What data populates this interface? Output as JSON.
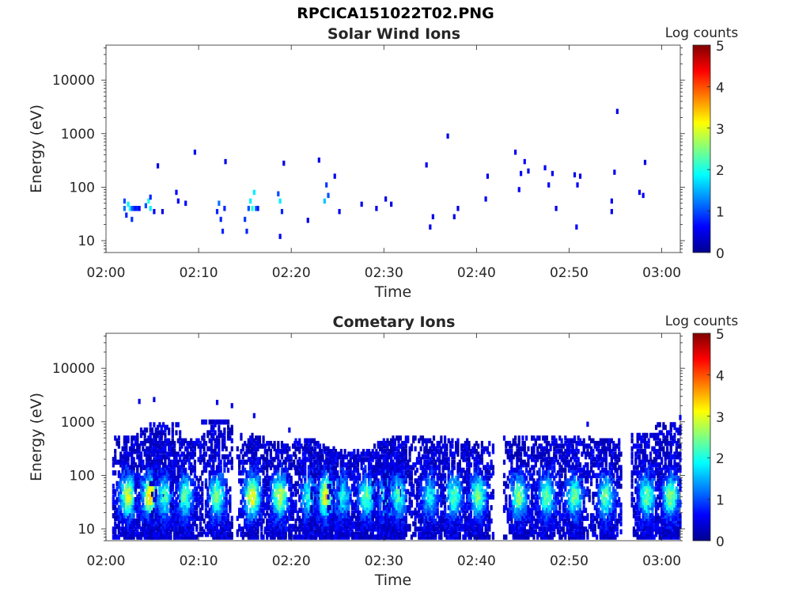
{
  "figure_title": "RPCICA151022T02.PNG",
  "colors": {
    "colormap": [
      "#00008f",
      "#0000ff",
      "#0080ff",
      "#00ffff",
      "#80ff80",
      "#ffff00",
      "#ff8000",
      "#ff0000",
      "#800000"
    ]
  },
  "chart_data": [
    {
      "type": "heatmap",
      "title": "Solar Wind Ions",
      "xlabel": "Time",
      "ylabel": "Energy (eV)",
      "x_ticks": [
        "02:00",
        "02:10",
        "02:20",
        "02:30",
        "02:40",
        "02:50",
        "03:00"
      ],
      "x_range_minutes": [
        0,
        62
      ],
      "y_scale": "log",
      "y_ticks": [
        "10",
        "100",
        "1000",
        "10000"
      ],
      "y_range_ev": [
        6,
        45000
      ],
      "colorbar": {
        "label": "Log counts",
        "range": [
          0,
          5
        ],
        "ticks": [
          "0",
          "1",
          "2",
          "3",
          "4",
          "5"
        ]
      },
      "cells": [
        [
          2.0,
          40,
          1.2
        ],
        [
          2.0,
          55,
          1.0
        ],
        [
          2.2,
          30,
          0.8
        ],
        [
          2.4,
          48,
          1.8
        ],
        [
          2.6,
          40,
          2.0
        ],
        [
          2.8,
          25,
          0.9
        ],
        [
          2.8,
          40,
          1.2
        ],
        [
          3.0,
          40,
          0.9
        ],
        [
          3.2,
          40,
          0.7
        ],
        [
          3.4,
          40,
          0.8
        ],
        [
          3.6,
          40,
          0.6
        ],
        [
          4.3,
          45,
          1.0
        ],
        [
          4.6,
          55,
          2.0
        ],
        [
          4.8,
          40,
          1.8
        ],
        [
          4.8,
          65,
          0.8
        ],
        [
          5.2,
          35,
          0.6
        ],
        [
          5.6,
          250,
          0.5
        ],
        [
          6.1,
          35,
          0.5
        ],
        [
          7.6,
          80,
          0.6
        ],
        [
          7.8,
          55,
          0.6
        ],
        [
          8.6,
          50,
          0.6
        ],
        [
          9.6,
          450,
          0.6
        ],
        [
          12.0,
          35,
          0.8
        ],
        [
          12.2,
          50,
          1.2
        ],
        [
          12.4,
          25,
          0.8
        ],
        [
          12.6,
          15,
          0.8
        ],
        [
          12.9,
          300,
          0.5
        ],
        [
          12.8,
          40,
          0.8
        ],
        [
          15.0,
          25,
          0.9
        ],
        [
          15.2,
          15,
          0.8
        ],
        [
          15.4,
          40,
          1.0
        ],
        [
          15.6,
          55,
          1.8
        ],
        [
          15.8,
          40,
          2.0
        ],
        [
          16.0,
          80,
          1.8
        ],
        [
          16.2,
          40,
          1.2
        ],
        [
          16.4,
          40,
          0.7
        ],
        [
          18.6,
          75,
          1.0
        ],
        [
          18.8,
          55,
          1.8
        ],
        [
          19.0,
          35,
          0.8
        ],
        [
          18.8,
          12,
          0.6
        ],
        [
          19.2,
          280,
          0.5
        ],
        [
          21.8,
          24,
          0.5
        ],
        [
          23.0,
          320,
          0.5
        ],
        [
          23.6,
          55,
          1.6
        ],
        [
          23.8,
          110,
          0.9
        ],
        [
          24.0,
          70,
          1.0
        ],
        [
          24.7,
          160,
          0.5
        ],
        [
          25.2,
          35,
          0.5
        ],
        [
          27.6,
          48,
          0.5
        ],
        [
          29.2,
          40,
          0.5
        ],
        [
          30.2,
          60,
          0.5
        ],
        [
          30.8,
          48,
          0.5
        ],
        [
          34.6,
          260,
          0.5
        ],
        [
          35.0,
          18,
          0.5
        ],
        [
          35.3,
          28,
          0.5
        ],
        [
          36.9,
          900,
          0.5
        ],
        [
          37.6,
          28,
          0.5
        ],
        [
          38.0,
          40,
          0.5
        ],
        [
          41.0,
          60,
          0.6
        ],
        [
          41.2,
          160,
          0.5
        ],
        [
          44.2,
          450,
          0.5
        ],
        [
          44.6,
          90,
          0.6
        ],
        [
          44.8,
          180,
          0.6
        ],
        [
          45.2,
          300,
          0.6
        ],
        [
          45.6,
          200,
          0.5
        ],
        [
          47.4,
          230,
          0.6
        ],
        [
          47.8,
          110,
          0.6
        ],
        [
          48.2,
          180,
          0.5
        ],
        [
          48.6,
          40,
          0.5
        ],
        [
          50.6,
          170,
          0.5
        ],
        [
          50.9,
          110,
          0.6
        ],
        [
          51.2,
          160,
          0.5
        ],
        [
          50.8,
          18,
          0.6
        ],
        [
          54.6,
          55,
          0.6
        ],
        [
          54.6,
          35,
          0.5
        ],
        [
          54.9,
          190,
          0.5
        ],
        [
          55.2,
          2600,
          0.5
        ],
        [
          57.6,
          80,
          0.5
        ],
        [
          58.0,
          70,
          0.6
        ],
        [
          58.2,
          290,
          0.5
        ]
      ]
    },
    {
      "type": "heatmap",
      "title": "Cometary Ions",
      "xlabel": "Time",
      "ylabel": "Energy (eV)",
      "x_ticks": [
        "02:00",
        "02:10",
        "02:20",
        "02:30",
        "02:40",
        "02:50",
        "03:00"
      ],
      "x_range_minutes": [
        0,
        62
      ],
      "y_scale": "log",
      "y_ticks": [
        "10",
        "100",
        "1000",
        "10000"
      ],
      "y_range_ev": [
        6,
        45000
      ],
      "colorbar": {
        "label": "Log counts",
        "range": [
          0,
          5
        ],
        "ticks": [
          "0",
          "1",
          "2",
          "3",
          "4",
          "5"
        ]
      },
      "bursts": [
        {
          "center_min": 2.4,
          "peak_log": 2.6,
          "top_ev": 500
        },
        {
          "center_min": 4.8,
          "peak_log": 3.0,
          "top_ev": 700
        },
        {
          "center_min": 6.4,
          "peak_log": 1.9,
          "top_ev": 900
        },
        {
          "center_min": 8.6,
          "peak_log": 2.0,
          "top_ev": 450
        },
        {
          "center_min": 12.0,
          "peak_log": 2.2,
          "top_ev": 1000
        },
        {
          "center_min": 15.8,
          "peak_log": 2.9,
          "top_ev": 600
        },
        {
          "center_min": 18.8,
          "peak_log": 2.6,
          "top_ev": 400
        },
        {
          "center_min": 21.9,
          "peak_log": 1.6,
          "top_ev": 450
        },
        {
          "center_min": 23.8,
          "peak_log": 2.9,
          "top_ev": 350
        },
        {
          "center_min": 25.6,
          "peak_log": 1.6,
          "top_ev": 300
        },
        {
          "center_min": 28.2,
          "peak_log": 2.0,
          "top_ev": 300
        },
        {
          "center_min": 30.4,
          "peak_log": 2.0,
          "top_ev": 400
        },
        {
          "center_min": 31.6,
          "peak_log": 1.8,
          "top_ev": 500
        },
        {
          "center_min": 35.0,
          "peak_log": 1.6,
          "top_ev": 500
        },
        {
          "center_min": 37.6,
          "peak_log": 2.0,
          "top_ev": 450
        },
        {
          "center_min": 40.2,
          "peak_log": 2.2,
          "top_ev": 400
        },
        {
          "center_min": 44.6,
          "peak_log": 2.3,
          "top_ev": 500
        },
        {
          "center_min": 47.6,
          "peak_log": 2.1,
          "top_ev": 550
        },
        {
          "center_min": 50.6,
          "peak_log": 2.1,
          "top_ev": 500
        },
        {
          "center_min": 54.0,
          "peak_log": 2.1,
          "top_ev": 450
        },
        {
          "center_min": 58.4,
          "peak_log": 2.1,
          "top_ev": 600
        },
        {
          "center_min": 61.0,
          "peak_log": 2.3,
          "top_ev": 900
        }
      ],
      "outlier_cells": [
        [
          3.6,
          2400,
          0.5
        ],
        [
          5.2,
          2600,
          0.5
        ],
        [
          12.0,
          2300,
          0.5
        ],
        [
          13.6,
          2000,
          0.5
        ],
        [
          16.0,
          1300,
          0.5
        ],
        [
          19.8,
          700,
          0.5
        ],
        [
          52.0,
          900,
          0.5
        ],
        [
          62.0,
          1200,
          0.5
        ]
      ]
    }
  ]
}
